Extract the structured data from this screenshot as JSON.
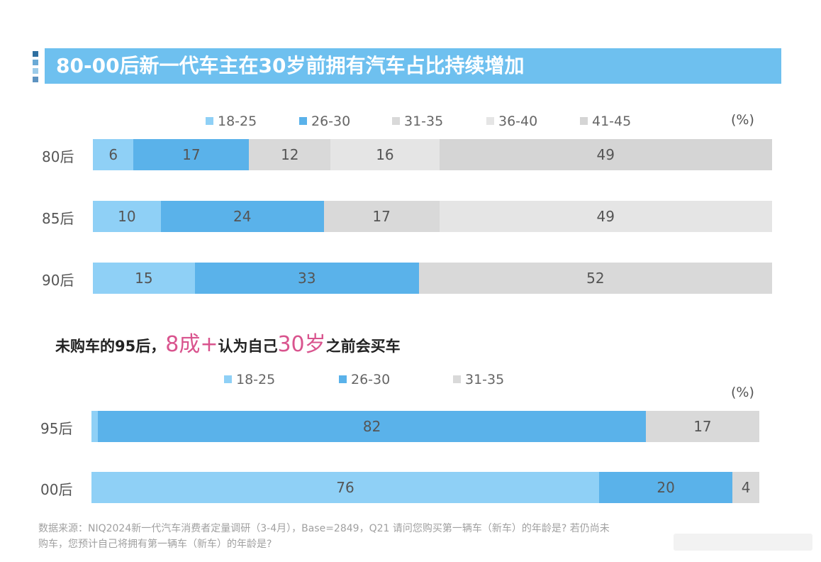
{
  "title": "80-00后新一代车主在30岁前拥有汽车占比持续增加",
  "subtitle": {
    "part1": "未购车的95后，",
    "highlight1": "8成+",
    "part2": "认为自己",
    "highlight2": "30岁",
    "part3": "之前会买车"
  },
  "footer": {
    "line1": "数据来源：NIQ2024新一代汽车消费者定量调研（3-4月），Base=2849，Q21 请问您购买第一辆车（新车）的年龄是? 若仍尚未",
    "line2": "购车，您预计自己将拥有第一辆车（新车）的年龄是?"
  },
  "colors": {
    "18-25": "#8fd0f6",
    "26-30": "#5ab2ea",
    "31-35": "#d9d9d9",
    "36-40": "#e5e5e5",
    "41-45": "#d5d5d5"
  },
  "chart_data": [
    {
      "type": "bar",
      "orientation": "horizontal",
      "stacked": true,
      "unit": "(%)",
      "legend": [
        "18-25",
        "26-30",
        "31-35",
        "36-40",
        "41-45"
      ],
      "legend_position": "top",
      "categories": [
        "80后",
        "85后",
        "90后"
      ],
      "series": [
        {
          "name": "18-25",
          "values": [
            6,
            10,
            15
          ]
        },
        {
          "name": "26-30",
          "values": [
            17,
            24,
            33
          ]
        },
        {
          "name": "31-35",
          "values": [
            12,
            17,
            52
          ]
        },
        {
          "name": "36-40",
          "values": [
            16,
            49,
            null
          ]
        },
        {
          "name": "41-45",
          "values": [
            49,
            null,
            null
          ]
        }
      ],
      "xlim": [
        0,
        100
      ],
      "grid": false
    },
    {
      "type": "bar",
      "orientation": "horizontal",
      "stacked": true,
      "unit": "(%)",
      "legend": [
        "18-25",
        "26-30",
        "31-35"
      ],
      "legend_position": "top",
      "categories": [
        "95后",
        "00后"
      ],
      "series": [
        {
          "name": "18-25",
          "values": [
            1,
            76
          ]
        },
        {
          "name": "26-30",
          "values": [
            82,
            20
          ]
        },
        {
          "name": "31-35",
          "values": [
            17,
            4
          ]
        }
      ],
      "segment_labels": [
        [
          "",
          "82",
          "17"
        ],
        [
          "76",
          "20",
          "4"
        ]
      ],
      "xlim": [
        0,
        100
      ],
      "grid": false
    }
  ]
}
